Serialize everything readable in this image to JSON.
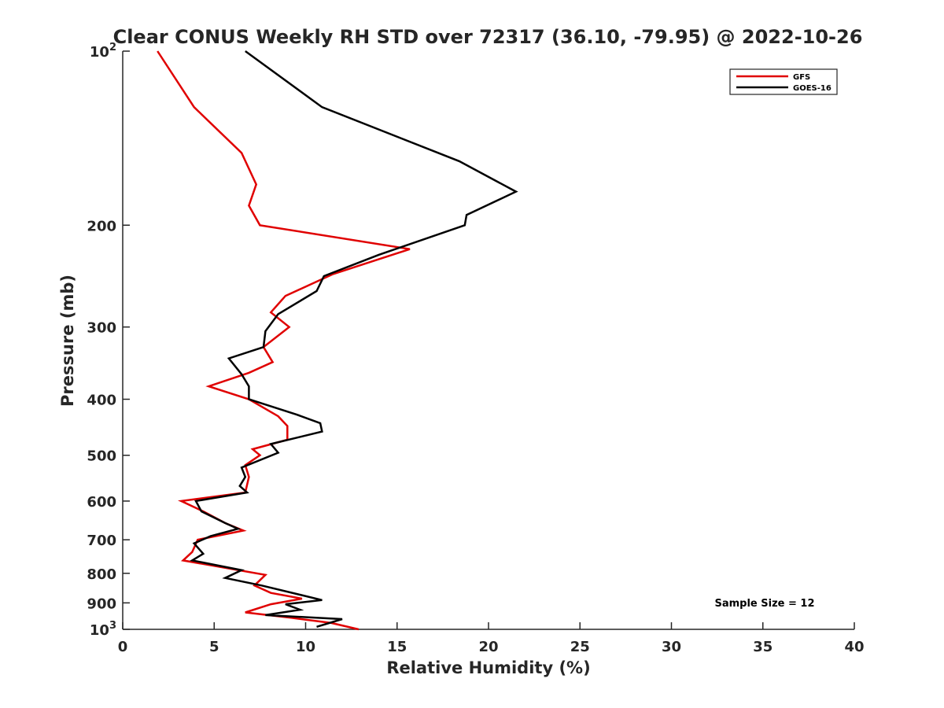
{
  "chart_data": {
    "type": "line",
    "title": "Clear CONUS Weekly RH STD over 72317 (36.10, -79.95) @ 2022-10-26",
    "xlabel": "Relative Humidity (%)",
    "ylabel": "Pressure (mb)",
    "xlim": [
      0,
      40
    ],
    "ylim": [
      100,
      1000
    ],
    "y_scale": "log",
    "y_reversed": true,
    "x_ticks": [
      "0",
      "5",
      "10",
      "15",
      "20",
      "25",
      "30",
      "35",
      "40"
    ],
    "y_ticks": [
      {
        "value": 100,
        "base": "10",
        "exp": "2"
      },
      {
        "value": 200,
        "label": "200"
      },
      {
        "value": 300,
        "label": "300"
      },
      {
        "value": 400,
        "label": "400"
      },
      {
        "value": 500,
        "label": "500"
      },
      {
        "value": 600,
        "label": "600"
      },
      {
        "value": 700,
        "label": "700"
      },
      {
        "value": 800,
        "label": "800"
      },
      {
        "value": 900,
        "label": "900"
      },
      {
        "value": 1000,
        "base": "10",
        "exp": "3"
      }
    ],
    "grid": false,
    "legend_position": "top-right",
    "annotation": "Sample Size = 12",
    "series": [
      {
        "name": "GFS",
        "color": "#e00000",
        "points": [
          [
            1.9,
            100
          ],
          [
            3.9,
            125
          ],
          [
            6.5,
            150
          ],
          [
            7.3,
            170
          ],
          [
            6.9,
            185
          ],
          [
            7.5,
            200
          ],
          [
            15.7,
            220
          ],
          [
            11.5,
            243
          ],
          [
            8.9,
            265
          ],
          [
            8.1,
            283
          ],
          [
            9.1,
            300
          ],
          [
            7.7,
            325
          ],
          [
            8.2,
            345
          ],
          [
            6.9,
            360
          ],
          [
            4.7,
            380
          ],
          [
            6.9,
            400
          ],
          [
            8.5,
            428
          ],
          [
            9.0,
            445
          ],
          [
            9.0,
            470
          ],
          [
            7.1,
            488
          ],
          [
            7.5,
            500
          ],
          [
            6.7,
            520
          ],
          [
            6.9,
            545
          ],
          [
            6.7,
            580
          ],
          [
            3.2,
            600
          ],
          [
            4.4,
            625
          ],
          [
            5.6,
            655
          ],
          [
            6.6,
            675
          ],
          [
            4.1,
            700
          ],
          [
            3.8,
            735
          ],
          [
            3.3,
            760
          ],
          [
            7.8,
            805
          ],
          [
            7.2,
            840
          ],
          [
            8.1,
            865
          ],
          [
            9.8,
            885
          ],
          [
            8.1,
            905
          ],
          [
            6.7,
            935
          ],
          [
            9.2,
            955
          ],
          [
            11.4,
            975
          ],
          [
            12.9,
            1000
          ]
        ]
      },
      {
        "name": "GOES-16",
        "color": "#000000",
        "points": [
          [
            6.7,
            100
          ],
          [
            10.9,
            125
          ],
          [
            18.4,
            155
          ],
          [
            21.5,
            175
          ],
          [
            18.8,
            192
          ],
          [
            18.7,
            200
          ],
          [
            14.0,
            225
          ],
          [
            11.0,
            245
          ],
          [
            10.6,
            260
          ],
          [
            8.5,
            285
          ],
          [
            7.8,
            305
          ],
          [
            7.7,
            325
          ],
          [
            5.8,
            340
          ],
          [
            6.5,
            362
          ],
          [
            6.9,
            380
          ],
          [
            6.9,
            400
          ],
          [
            9.5,
            425
          ],
          [
            10.8,
            440
          ],
          [
            10.9,
            455
          ],
          [
            8.1,
            478
          ],
          [
            8.5,
            495
          ],
          [
            6.5,
            525
          ],
          [
            6.7,
            545
          ],
          [
            6.4,
            565
          ],
          [
            6.8,
            580
          ],
          [
            4.0,
            600
          ],
          [
            4.3,
            625
          ],
          [
            5.6,
            655
          ],
          [
            6.3,
            670
          ],
          [
            4.8,
            690
          ],
          [
            3.9,
            710
          ],
          [
            4.4,
            740
          ],
          [
            3.8,
            760
          ],
          [
            6.5,
            790
          ],
          [
            5.6,
            815
          ],
          [
            7.6,
            840
          ],
          [
            10.9,
            890
          ],
          [
            8.9,
            905
          ],
          [
            9.7,
            925
          ],
          [
            7.8,
            945
          ],
          [
            12.0,
            960
          ],
          [
            10.6,
            990
          ]
        ]
      }
    ]
  }
}
